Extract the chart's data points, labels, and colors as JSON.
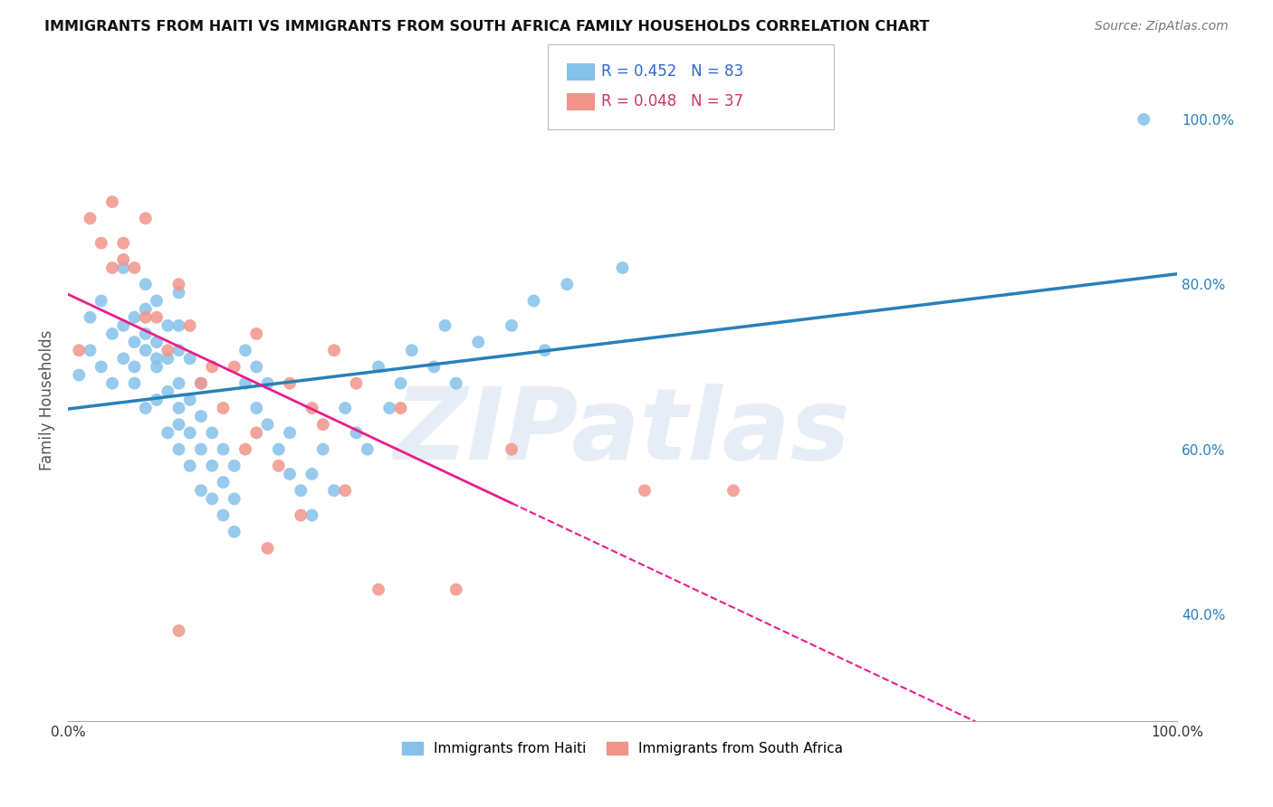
{
  "title": "IMMIGRANTS FROM HAITI VS IMMIGRANTS FROM SOUTH AFRICA FAMILY HOUSEHOLDS CORRELATION CHART",
  "source": "Source: ZipAtlas.com",
  "ylabel": "Family Households",
  "xlim": [
    0.0,
    1.0
  ],
  "ylim": [
    0.27,
    1.05
  ],
  "y_ticks_right": [
    0.4,
    0.6,
    0.8,
    1.0
  ],
  "y_tick_labels_right": [
    "40.0%",
    "60.0%",
    "80.0%",
    "100.0%"
  ],
  "haiti_color": "#85C1E9",
  "sa_color": "#F1948A",
  "haiti_line_color": "#2980B9",
  "sa_line_color": "#E91E8C",
  "legend_haiti_label": "Immigrants from Haiti",
  "legend_sa_label": "Immigrants from South Africa",
  "R_haiti": 0.452,
  "N_haiti": 83,
  "R_sa": 0.048,
  "N_sa": 37,
  "haiti_scatter_x": [
    0.01,
    0.02,
    0.02,
    0.03,
    0.03,
    0.04,
    0.04,
    0.05,
    0.05,
    0.05,
    0.06,
    0.06,
    0.06,
    0.06,
    0.07,
    0.07,
    0.07,
    0.07,
    0.07,
    0.08,
    0.08,
    0.08,
    0.08,
    0.08,
    0.09,
    0.09,
    0.09,
    0.09,
    0.1,
    0.1,
    0.1,
    0.1,
    0.1,
    0.1,
    0.1,
    0.11,
    0.11,
    0.11,
    0.11,
    0.12,
    0.12,
    0.12,
    0.12,
    0.13,
    0.13,
    0.13,
    0.14,
    0.14,
    0.14,
    0.15,
    0.15,
    0.15,
    0.16,
    0.16,
    0.17,
    0.17,
    0.18,
    0.18,
    0.19,
    0.2,
    0.2,
    0.21,
    0.22,
    0.22,
    0.23,
    0.24,
    0.25,
    0.26,
    0.27,
    0.28,
    0.29,
    0.3,
    0.31,
    0.33,
    0.34,
    0.35,
    0.37,
    0.4,
    0.42,
    0.43,
    0.45,
    0.5,
    0.97
  ],
  "haiti_scatter_y": [
    0.69,
    0.72,
    0.76,
    0.78,
    0.7,
    0.68,
    0.74,
    0.75,
    0.82,
    0.71,
    0.7,
    0.76,
    0.73,
    0.68,
    0.65,
    0.72,
    0.77,
    0.8,
    0.74,
    0.66,
    0.7,
    0.73,
    0.78,
    0.71,
    0.62,
    0.67,
    0.71,
    0.75,
    0.6,
    0.63,
    0.68,
    0.72,
    0.75,
    0.79,
    0.65,
    0.58,
    0.62,
    0.66,
    0.71,
    0.55,
    0.6,
    0.64,
    0.68,
    0.54,
    0.58,
    0.62,
    0.52,
    0.56,
    0.6,
    0.5,
    0.54,
    0.58,
    0.68,
    0.72,
    0.65,
    0.7,
    0.63,
    0.68,
    0.6,
    0.57,
    0.62,
    0.55,
    0.52,
    0.57,
    0.6,
    0.55,
    0.65,
    0.62,
    0.6,
    0.7,
    0.65,
    0.68,
    0.72,
    0.7,
    0.75,
    0.68,
    0.73,
    0.75,
    0.78,
    0.72,
    0.8,
    0.82,
    1.0
  ],
  "sa_scatter_x": [
    0.01,
    0.02,
    0.03,
    0.04,
    0.04,
    0.05,
    0.05,
    0.06,
    0.07,
    0.07,
    0.08,
    0.09,
    0.1,
    0.11,
    0.12,
    0.13,
    0.14,
    0.15,
    0.16,
    0.17,
    0.17,
    0.19,
    0.2,
    0.22,
    0.24,
    0.26,
    0.18,
    0.21,
    0.23,
    0.25,
    0.28,
    0.3,
    0.35,
    0.4,
    0.52,
    0.6,
    0.1
  ],
  "sa_scatter_y": [
    0.72,
    0.88,
    0.85,
    0.9,
    0.82,
    0.85,
    0.83,
    0.82,
    0.88,
    0.76,
    0.76,
    0.72,
    0.8,
    0.75,
    0.68,
    0.7,
    0.65,
    0.7,
    0.6,
    0.62,
    0.74,
    0.58,
    0.68,
    0.65,
    0.72,
    0.68,
    0.48,
    0.52,
    0.63,
    0.55,
    0.43,
    0.65,
    0.43,
    0.6,
    0.55,
    0.55,
    0.38
  ],
  "background_color": "#FFFFFF",
  "grid_color": "#CCCCCC",
  "watermark_text": "ZIPatlas",
  "watermark_color": "#C8D8EC",
  "watermark_alpha": 0.45
}
